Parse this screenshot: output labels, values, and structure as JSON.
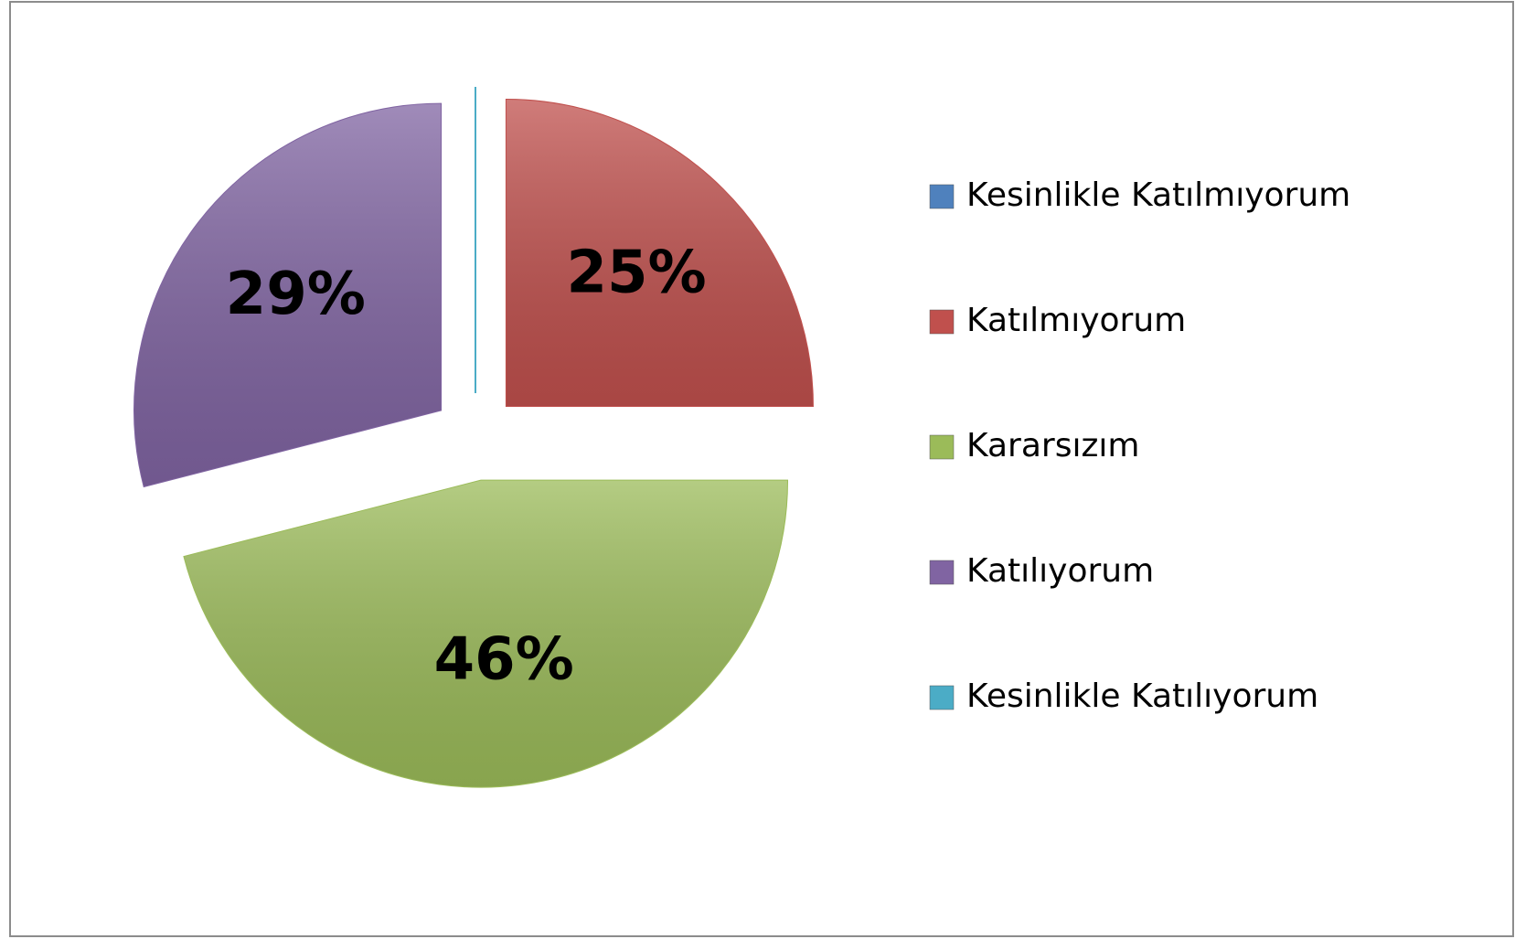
{
  "chart_data": {
    "type": "pie",
    "categories": [
      "Kesinlikle Katılmıyorum",
      "Katılmıyorum",
      "Kararsızım",
      "Katılıyorum",
      "Kesinlikle Katılıyorum"
    ],
    "values": [
      0,
      25,
      46,
      29,
      0
    ],
    "value_labels": [
      null,
      "25%",
      "46%",
      "29%",
      null
    ],
    "colors": [
      "#4f81bd",
      "#c0504d",
      "#9bbb59",
      "#8064a2",
      "#4bacc6"
    ],
    "legend": "right"
  }
}
